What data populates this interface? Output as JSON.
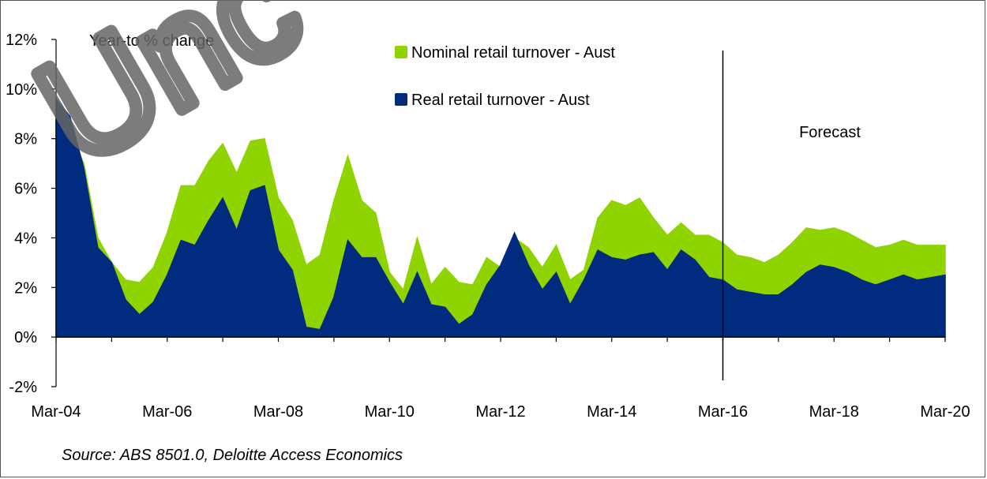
{
  "chart_data": {
    "type": "area",
    "ylabel": "Year-to % change",
    "ylim": [
      -2,
      12
    ],
    "y_ticks": [
      "-2%",
      "0%",
      "2%",
      "4%",
      "6%",
      "8%",
      "10%",
      "12%"
    ],
    "y_tick_values": [
      -2,
      0,
      2,
      4,
      6,
      8,
      10,
      12
    ],
    "x_tick_labels": [
      "Mar-04",
      "Mar-06",
      "Mar-08",
      "Mar-10",
      "Mar-12",
      "Mar-14",
      "Mar-16",
      "Mar-18",
      "Mar-20"
    ],
    "x_start": "Mar-04",
    "x_end": "Mar-20",
    "frequency": "quarterly",
    "forecast_start": "Mar-16",
    "forecast_label": "Forecast",
    "legend_position": "top-center",
    "series": [
      {
        "name": "Nominal retail turnover - Aust",
        "color": "#8fd400",
        "values": [
          9.5,
          8.3,
          7.0,
          4.0,
          3.0,
          2.3,
          2.2,
          2.8,
          4.2,
          6.1,
          6.1,
          7.1,
          7.8,
          6.6,
          7.9,
          8.0,
          5.6,
          4.7,
          2.9,
          3.3,
          5.5,
          7.3,
          5.5,
          5.0,
          2.6,
          1.9,
          4.0,
          2.1,
          2.8,
          2.2,
          2.1,
          3.2,
          2.8,
          4.0,
          3.6,
          2.8,
          3.7,
          2.3,
          2.7,
          4.8,
          5.5,
          5.3,
          5.6,
          4.8,
          4.1,
          4.6,
          4.1,
          4.1,
          3.8,
          3.3,
          3.2,
          3.0,
          3.3,
          3.8,
          4.4,
          4.3,
          4.4,
          4.2,
          3.9,
          3.6,
          3.7,
          3.9,
          3.7,
          3.7,
          3.7
        ]
      },
      {
        "name": "Real retail turnover - Aust",
        "color": "#002b7f",
        "values": [
          9.6,
          8.9,
          6.8,
          3.6,
          3.0,
          1.5,
          0.9,
          1.4,
          2.5,
          3.9,
          3.7,
          4.7,
          5.6,
          4.3,
          5.9,
          6.1,
          3.5,
          2.7,
          0.4,
          0.3,
          1.6,
          3.9,
          3.2,
          3.2,
          2.2,
          1.3,
          2.6,
          1.3,
          1.2,
          0.5,
          0.9,
          2.1,
          2.9,
          4.2,
          2.9,
          1.9,
          2.6,
          1.3,
          2.3,
          3.5,
          3.2,
          3.1,
          3.3,
          3.4,
          2.7,
          3.5,
          3.1,
          2.4,
          2.3,
          1.9,
          1.8,
          1.7,
          1.7,
          2.1,
          2.6,
          2.9,
          2.8,
          2.6,
          2.3,
          2.1,
          2.3,
          2.5,
          2.3,
          2.4,
          2.5
        ]
      }
    ],
    "source": "Source: ABS 8501.0, Deloitte Access Economics"
  },
  "watermark": "Unc"
}
